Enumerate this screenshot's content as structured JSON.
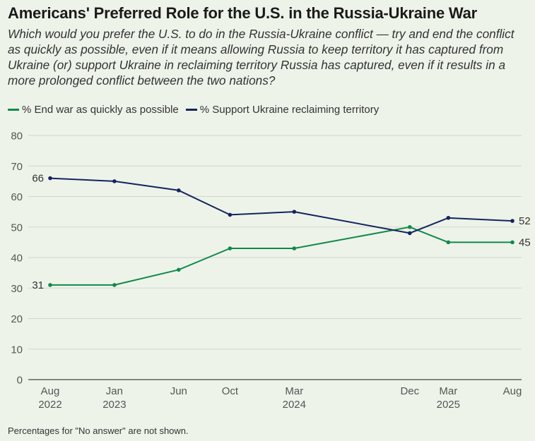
{
  "colors": {
    "background": "#eef3ea",
    "series_end_war": "#0f8a4a",
    "series_support_ukraine": "#15245e",
    "gridline": "#cfd6cc",
    "axis": "#444444",
    "tick_text": "#555555"
  },
  "chart_data": {
    "type": "line",
    "title": "Americans' Preferred Role for the U.S. in the Russia-Ukraine War",
    "subtitle": "Which would you prefer the U.S. to do in the Russia-Ukraine conflict — try and end the conflict as quickly as possible, even if it means allowing Russia to keep territory it has captured from Ukraine (or) support Ukraine in reclaiming territory Russia has captured, even if it results in a more prolonged conflict between the two nations?",
    "xlabel": "",
    "ylabel": "",
    "ylim": [
      0,
      80
    ],
    "yticks": [
      0,
      10,
      20,
      30,
      40,
      50,
      60,
      70,
      80
    ],
    "grid": true,
    "legend_position": "top-left",
    "x_time": [
      2022.583,
      2023.0,
      2023.417,
      2023.75,
      2024.167,
      2024.917,
      2025.167,
      2025.583
    ],
    "x_tick_labels": [
      {
        "t": 2022.583,
        "month": "Aug",
        "year": "2022"
      },
      {
        "t": 2023.0,
        "month": "Jan",
        "year": "2023"
      },
      {
        "t": 2023.417,
        "month": "Jun",
        "year": ""
      },
      {
        "t": 2023.75,
        "month": "Oct",
        "year": ""
      },
      {
        "t": 2024.167,
        "month": "Mar",
        "year": "2024"
      },
      {
        "t": 2024.917,
        "month": "Dec",
        "year": ""
      },
      {
        "t": 2025.167,
        "month": "Mar",
        "year": "2025"
      },
      {
        "t": 2025.583,
        "month": "Aug",
        "year": ""
      }
    ],
    "series": [
      {
        "name": "% End war as quickly as possible",
        "key": "end_war",
        "values": [
          31,
          31,
          36,
          43,
          43,
          50,
          45,
          45
        ],
        "start_label": "31",
        "end_label": "45"
      },
      {
        "name": "% Support Ukraine reclaiming territory",
        "key": "support_ukraine",
        "values": [
          66,
          65,
          62,
          54,
          55,
          48,
          53,
          52
        ],
        "start_label": "66",
        "end_label": "52"
      }
    ]
  },
  "legend": {
    "end_war": "% End war as quickly as possible",
    "support_ukraine": "% Support Ukraine reclaiming territory"
  },
  "footnote": "Percentages for \"No answer\" are not shown."
}
